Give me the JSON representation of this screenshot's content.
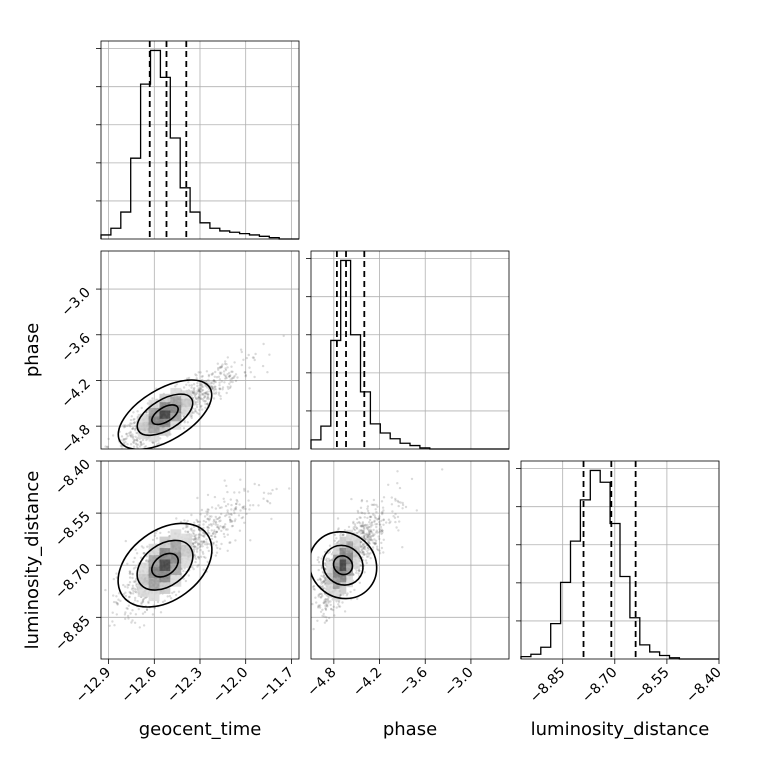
{
  "chart_data": {
    "type": "corner",
    "parameters": [
      "geocent_time",
      "phase",
      "luminosity_distance"
    ],
    "axes": {
      "geocent_time": {
        "range": [
          -12.95,
          -11.65
        ],
        "ticks": [
          -12.9,
          -12.6,
          -12.3,
          -12.0,
          -11.7
        ],
        "tick_labels": [
          "−12.9",
          "−12.6",
          "−12.3",
          "−12.0",
          "−11.7"
        ]
      },
      "phase": {
        "range": [
          -5.1,
          -2.5
        ],
        "ticks": [
          -4.8,
          -4.2,
          -3.6,
          -3.0
        ],
        "tick_labels": [
          "−4.8",
          "−4.2",
          "−3.6",
          "−3.0"
        ]
      },
      "luminosity_distance": {
        "range": [
          -8.97,
          -8.4
        ],
        "ticks": [
          -8.85,
          -8.7,
          -8.55,
          -8.4
        ],
        "tick_labels": [
          "−8.85",
          "−8.70",
          "−8.55",
          "−8.40"
        ]
      }
    },
    "grid": true,
    "diagonal_histograms": [
      {
        "parameter": "geocent_time",
        "bin_edges": [
          -12.95,
          -12.885,
          -12.82,
          -12.755,
          -12.69,
          -12.625,
          -12.56,
          -12.495,
          -12.43,
          -12.365,
          -12.3,
          -12.235,
          -12.17,
          -12.105,
          -12.04,
          -11.975,
          -11.91,
          -11.845,
          -11.78,
          -11.715,
          -11.65
        ],
        "counts": [
          3,
          8,
          20,
          60,
          115,
          140,
          120,
          75,
          38,
          20,
          12,
          8,
          6,
          5,
          4,
          3,
          2,
          1,
          0,
          0
        ],
        "quantiles": [
          -12.63,
          -12.52,
          -12.39
        ]
      },
      {
        "parameter": "phase",
        "bin_edges": [
          -5.1,
          -4.97,
          -4.84,
          -4.71,
          -4.58,
          -4.45,
          -4.32,
          -4.19,
          -4.06,
          -3.93,
          -3.8,
          -3.67,
          -3.54,
          -3.41,
          -3.28,
          -3.15,
          -3.02,
          -2.89,
          -2.76,
          -2.63,
          -2.5
        ],
        "counts": [
          8,
          20,
          95,
          165,
          100,
          50,
          22,
          14,
          9,
          5,
          3,
          1,
          0,
          0,
          0,
          0,
          0,
          0,
          0,
          0
        ],
        "quantiles": [
          -4.76,
          -4.64,
          -4.4
        ]
      },
      {
        "parameter": "luminosity_distance",
        "bin_edges": [
          -8.97,
          -8.9415,
          -8.913,
          -8.8845,
          -8.856,
          -8.8275,
          -8.799,
          -8.7705,
          -8.742,
          -8.7135,
          -8.685,
          -8.6565,
          -8.628,
          -8.5995,
          -8.571,
          -8.5425,
          -8.514,
          -8.4855,
          -8.457,
          -8.4285,
          -8.4
        ],
        "counts": [
          2,
          4,
          10,
          30,
          65,
          100,
          135,
          160,
          150,
          115,
          70,
          35,
          12,
          6,
          3,
          1,
          0,
          0,
          0,
          0
        ],
        "quantiles": [
          -8.79,
          -8.71,
          -8.64
        ]
      }
    ],
    "pair_plots": [
      {
        "x": "geocent_time",
        "y": "phase",
        "center": [
          -12.53,
          -4.65
        ],
        "spread": [
          0.13,
          0.2
        ],
        "correlation": 0.78,
        "contour_levels": 3
      },
      {
        "x": "geocent_time",
        "y": "luminosity_distance",
        "center": [
          -12.53,
          -8.7
        ],
        "spread": [
          0.13,
          0.06
        ],
        "correlation": 0.7,
        "contour_levels": 3
      },
      {
        "x": "phase",
        "y": "luminosity_distance",
        "center": [
          -4.68,
          -8.7
        ],
        "spread": [
          0.16,
          0.06
        ],
        "correlation": 0.65,
        "contour_levels": 3
      }
    ]
  }
}
